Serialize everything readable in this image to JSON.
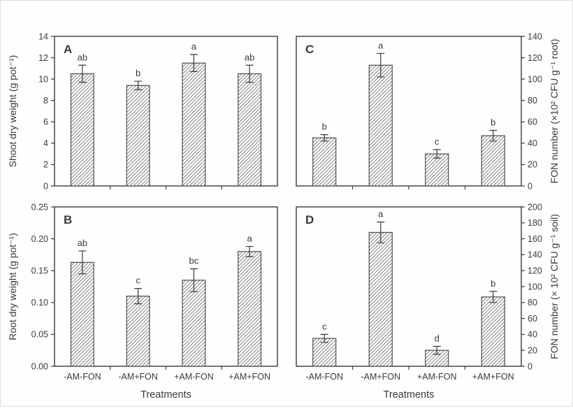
{
  "figure": {
    "kind": "four-panel bar chart figure with hatched bars and error bars",
    "x_axis_title": "Treatments"
  },
  "colors": {
    "axis": "#3a3a3a",
    "bar_edge": "#4d4d4d",
    "hatch_line": "#6e6e6e",
    "text": "#3a3a3a",
    "background": "#ffffff"
  },
  "chart_data": [
    {
      "type": "bar",
      "panel": "A",
      "position": "top-left",
      "axis_side": "left",
      "ylabel": "Shoot dry weight (g pot⁻¹)",
      "ylim": [
        0,
        14
      ],
      "yticks": [
        "0",
        "2",
        "4",
        "6",
        "8",
        "10",
        "12",
        "14"
      ],
      "categories": [
        "-AM-FON",
        "-AM+FON",
        "+AM-FON",
        "+AM+FON"
      ],
      "values": [
        10.5,
        9.4,
        11.5,
        10.5
      ],
      "errors": [
        0.8,
        0.4,
        0.8,
        0.8
      ],
      "sig_letters": [
        "ab",
        "b",
        "a",
        "ab"
      ],
      "xlabel": "",
      "show_x_tick_labels": false,
      "grid": false
    },
    {
      "type": "bar",
      "panel": "C",
      "position": "top-right",
      "axis_side": "right",
      "ylabel": "FON number (×10² CFU g⁻¹ root)",
      "ylim": [
        0,
        140
      ],
      "yticks": [
        "0",
        "20",
        "40",
        "60",
        "80",
        "100",
        "120",
        "140"
      ],
      "categories": [
        "-AM-FON",
        "-AM+FON",
        "+AM-FON",
        "+AM+FON"
      ],
      "values": [
        45,
        113,
        30,
        47
      ],
      "errors": [
        3,
        11,
        4,
        5
      ],
      "sig_letters": [
        "b",
        "a",
        "c",
        "b"
      ],
      "xlabel": "",
      "show_x_tick_labels": false,
      "grid": false
    },
    {
      "type": "bar",
      "panel": "B",
      "position": "bottom-left",
      "axis_side": "left",
      "ylabel": "Root dry weight (g pot⁻¹)",
      "ylim": [
        0,
        0.25
      ],
      "yticks": [
        "0.00",
        "0.05",
        "0.10",
        "0.15",
        "0.20",
        "0.25"
      ],
      "categories": [
        "-AM-FON",
        "-AM+FON",
        "+AM-FON",
        "+AM+FON"
      ],
      "values": [
        0.163,
        0.11,
        0.135,
        0.18
      ],
      "errors": [
        0.018,
        0.012,
        0.018,
        0.008
      ],
      "sig_letters": [
        "ab",
        "c",
        "bc",
        "a"
      ],
      "xlabel": "Treatments",
      "show_x_tick_labels": true,
      "grid": false
    },
    {
      "type": "bar",
      "panel": "D",
      "position": "bottom-right",
      "axis_side": "right",
      "ylabel": "FON number (× 10² CFU g⁻¹ soil)",
      "ylim": [
        0,
        200
      ],
      "yticks": [
        "0",
        "20",
        "40",
        "60",
        "80",
        "100",
        "120",
        "140",
        "160",
        "180",
        "200"
      ],
      "categories": [
        "-AM-FON",
        "-AM+FON",
        "+AM-FON",
        "+AM+FON"
      ],
      "values": [
        35,
        168,
        20,
        87
      ],
      "errors": [
        5,
        13,
        5,
        7
      ],
      "sig_letters": [
        "c",
        "a",
        "d",
        "b"
      ],
      "xlabel": "Treatments",
      "show_x_tick_labels": true,
      "grid": false
    }
  ]
}
